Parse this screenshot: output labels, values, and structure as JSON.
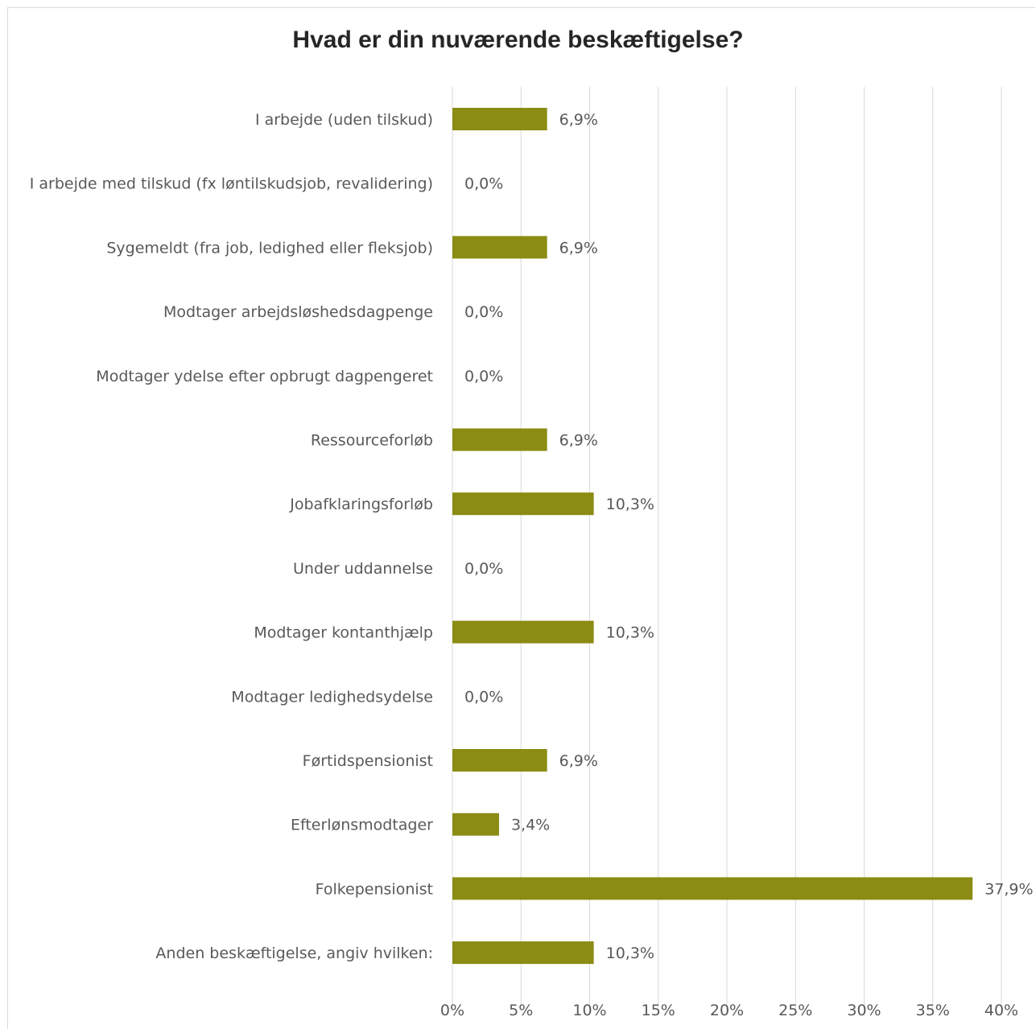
{
  "chart_data": {
    "type": "bar",
    "orientation": "horizontal",
    "title": "Hvad er din nuværende beskæftigelse?",
    "categories": [
      "I arbejde (uden tilskud)",
      "I arbejde med tilskud (fx løntilskudsjob, revalidering)",
      "Sygemeldt (fra job, ledighed eller fleksjob)",
      "Modtager arbejdsløshedsdagpenge",
      "Modtager ydelse efter opbrugt dagpengeret",
      "Ressourceforløb",
      "Jobafklaringsforløb",
      "Under uddannelse",
      "Modtager kontanthjælp",
      "Modtager ledighedsydelse",
      "Førtidspensionist",
      "Efterlønsmodtager",
      "Folkepensionist",
      "Anden beskæftigelse, angiv hvilken:"
    ],
    "values": [
      6.9,
      0.0,
      6.9,
      0.0,
      0.0,
      6.9,
      10.3,
      0.0,
      10.3,
      0.0,
      6.9,
      3.4,
      37.9,
      10.3
    ],
    "value_labels": [
      "6,9%",
      "0,0%",
      "6,9%",
      "0,0%",
      "0,0%",
      "6,9%",
      "10,3%",
      "0,0%",
      "10,3%",
      "0,0%",
      "6,9%",
      "3,4%",
      "37,9%",
      "10,3%"
    ],
    "xlim": [
      0,
      40
    ],
    "xticks": [
      0,
      5,
      10,
      15,
      20,
      25,
      30,
      35,
      40
    ],
    "xtick_labels": [
      "0%",
      "5%",
      "10%",
      "15%",
      "20%",
      "25%",
      "30%",
      "35%",
      "40%"
    ],
    "grid": true,
    "bar_color": "#8b8c13",
    "grid_color": "#d9d9d9"
  }
}
